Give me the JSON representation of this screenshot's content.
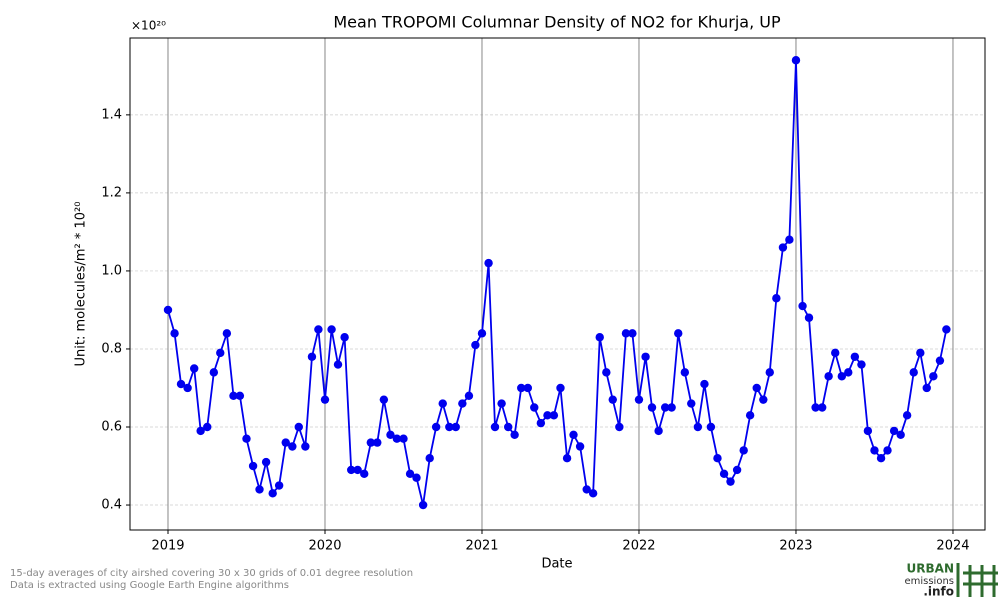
{
  "chart_data": {
    "type": "line",
    "title": "Mean TROPOMI Columnar Density of NO2 for Khurja, UP",
    "offset_text": "×10²⁰",
    "x_label": "Date",
    "y_label": "Unit: molecules/m² * 10²⁰",
    "x": [
      2019,
      2019.042,
      2019.083,
      2019.125,
      2019.167,
      2019.208,
      2019.25,
      2019.292,
      2019.333,
      2019.375,
      2019.417,
      2019.458,
      2019.5,
      2019.542,
      2019.583,
      2019.625,
      2019.667,
      2019.708,
      2019.75,
      2019.792,
      2019.833,
      2019.875,
      2019.917,
      2019.958,
      2020,
      2020.042,
      2020.083,
      2020.125,
      2020.167,
      2020.208,
      2020.25,
      2020.292,
      2020.333,
      2020.375,
      2020.417,
      2020.458,
      2020.5,
      2020.542,
      2020.583,
      2020.625,
      2020.667,
      2020.708,
      2020.75,
      2020.792,
      2020.833,
      2020.875,
      2020.917,
      2020.958,
      2021,
      2021.042,
      2021.083,
      2021.125,
      2021.167,
      2021.208,
      2021.25,
      2021.292,
      2021.333,
      2021.375,
      2021.417,
      2021.458,
      2021.5,
      2021.542,
      2021.583,
      2021.625,
      2021.667,
      2021.708,
      2021.75,
      2021.792,
      2021.833,
      2021.875,
      2021.917,
      2021.958,
      2022,
      2022.042,
      2022.083,
      2022.125,
      2022.167,
      2022.208,
      2022.25,
      2022.292,
      2022.333,
      2022.375,
      2022.417,
      2022.458,
      2022.5,
      2022.542,
      2022.583,
      2022.625,
      2022.667,
      2022.708,
      2022.75,
      2022.792,
      2022.833,
      2022.875,
      2022.917,
      2022.958,
      2023,
      2023.042,
      2023.083,
      2023.125,
      2023.167,
      2023.208,
      2023.25,
      2023.292,
      2023.333,
      2023.375,
      2023.417,
      2023.458,
      2023.5,
      2023.542,
      2023.583,
      2023.625,
      2023.667,
      2023.708,
      2023.75,
      2023.792,
      2023.833,
      2023.875,
      2023.917,
      2023.958
    ],
    "series": [
      {
        "color": "#0000ee",
        "values": [
          0.9,
          0.84,
          0.71,
          0.7,
          0.75,
          0.59,
          0.6,
          0.74,
          0.79,
          0.84,
          0.68,
          0.68,
          0.57,
          0.5,
          0.44,
          0.51,
          0.43,
          0.45,
          0.56,
          0.55,
          0.6,
          0.55,
          0.78,
          0.85,
          0.67,
          0.85,
          0.76,
          0.83,
          0.49,
          0.49,
          0.48,
          0.56,
          0.56,
          0.67,
          0.58,
          0.57,
          0.57,
          0.48,
          0.47,
          0.4,
          0.52,
          0.6,
          0.66,
          0.6,
          0.6,
          0.66,
          0.68,
          0.81,
          0.84,
          1.02,
          0.6,
          0.66,
          0.6,
          0.58,
          0.7,
          0.7,
          0.65,
          0.61,
          0.63,
          0.63,
          0.7,
          0.52,
          0.58,
          0.55,
          0.44,
          0.43,
          0.83,
          0.74,
          0.67,
          0.6,
          0.84,
          0.84,
          0.67,
          0.78,
          0.65,
          0.59,
          0.65,
          0.65,
          0.84,
          0.74,
          0.66,
          0.6,
          0.71,
          0.6,
          0.52,
          0.48,
          0.46,
          0.49,
          0.54,
          0.63,
          0.7,
          0.67,
          0.74,
          0.93,
          1.06,
          1.08,
          1.54,
          0.91,
          0.88,
          0.65,
          0.65,
          0.73,
          0.79,
          0.73,
          0.74,
          0.78,
          0.76,
          0.59,
          0.54,
          0.52,
          0.54,
          0.59,
          0.58,
          0.63,
          0.74,
          0.79,
          0.7,
          0.73,
          0.77,
          0.85
        ]
      }
    ],
    "xlim": [
      2018.758,
      2024.204
    ],
    "xticks": [
      2019,
      2020,
      2021,
      2022,
      2023,
      2024
    ],
    "ylim": [
      0.336,
      1.597
    ],
    "yticks": [
      0.4,
      0.6,
      0.8,
      {
        "value": 1,
        "label": "1.0"
      },
      1.2,
      1.4
    ],
    "grid": true,
    "footnotes": [
      "15-day averages of city airshed covering 30 x 30 grids of 0.01 degree resolution",
      "Data is extracted using Google Earth Engine algorithms"
    ],
    "logo": [
      "URBAN",
      "emissions",
      ".info"
    ]
  }
}
